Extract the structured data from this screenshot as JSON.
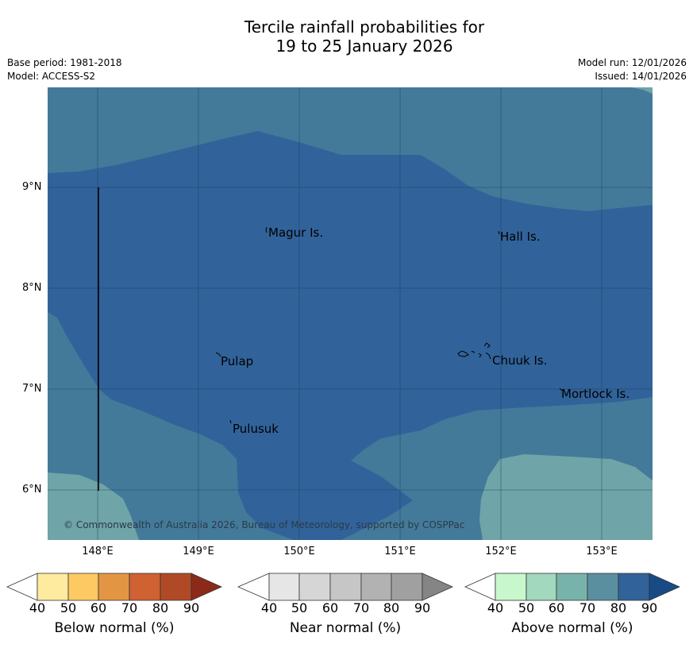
{
  "title": {
    "line1": "Tercile rainfall probabilities for",
    "line2": "19 to 25 January 2026"
  },
  "meta_left": {
    "base_period": "Base period: 1981-2018",
    "model": "Model: ACCESS-S2"
  },
  "meta_right": {
    "model_run": "Model run: 12/01/2026",
    "issued": "Issued: 14/01/2026"
  },
  "map": {
    "lat_labels": [
      "9°N",
      "8°N",
      "7°N",
      "6°N"
    ],
    "lon_labels": [
      "148°E",
      "149°E",
      "150°E",
      "151°E",
      "152°E",
      "153°E"
    ],
    "places": [
      "Magur Is.",
      "Hall Is.",
      "Pulap",
      "Chuuk Is.",
      "Mortlock Is.",
      "Pulusuk"
    ],
    "copyright": "© Commonwealth of Australia 2026, Bureau of Meteorology, supported by COSPPac",
    "colors": {
      "above_70_80": "#437a99",
      "above_80_90": "#31639a",
      "above_60_70": "#6fa4a8",
      "grid": "#1f3d55"
    }
  },
  "colorbars": {
    "below": {
      "label": "Below normal (%)",
      "ticks": [
        "40",
        "50",
        "60",
        "70",
        "80",
        "90"
      ],
      "colors": [
        "#ffffff",
        "#feeba0",
        "#fdc962",
        "#e29644",
        "#cf6133",
        "#b04a26",
        "#8c2a1a"
      ]
    },
    "near": {
      "label": "Near normal (%)",
      "ticks": [
        "40",
        "50",
        "60",
        "70",
        "80",
        "90"
      ],
      "colors": [
        "#ffffff",
        "#e6e6e6",
        "#d6d6d6",
        "#c6c6c6",
        "#b2b2b2",
        "#a0a0a0",
        "#858585"
      ]
    },
    "above": {
      "label": "Above normal (%)",
      "ticks": [
        "40",
        "50",
        "60",
        "70",
        "80",
        "90"
      ],
      "colors": [
        "#ffffff",
        "#c8f7cd",
        "#a2d8bd",
        "#78b3ab",
        "#5a8fa0",
        "#31639a",
        "#184b86"
      ]
    }
  }
}
